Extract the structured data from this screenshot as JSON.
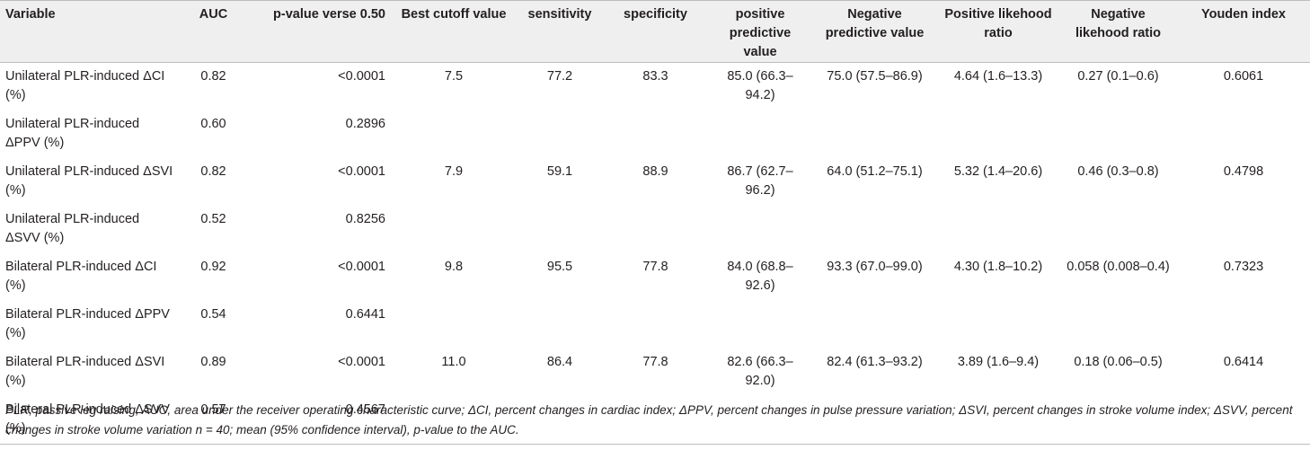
{
  "table": {
    "headers": [
      "Variable",
      "AUC",
      "p-value verse 0.50",
      "Best cutoff value",
      "sensitivity",
      "specificity",
      "positive predictive value",
      "Negative predictive value",
      "Positive likehood ratio",
      "Negative likehood ratio",
      "Youden index"
    ],
    "rows": [
      [
        "Unilateral PLR-induced ΔCI (%)",
        "0.82",
        "<0.0001",
        "7.5",
        "77.2",
        "83.3",
        "85.0 (66.3–94.2)",
        "75.0 (57.5–86.9)",
        "4.64 (1.6–13.3)",
        "0.27 (0.1–0.6)",
        "0.6061"
      ],
      [
        "Unilateral PLR-induced ΔPPV (%)",
        "0.60",
        "0.2896",
        "",
        "",
        "",
        "",
        "",
        "",
        "",
        ""
      ],
      [
        "Unilateral PLR-induced ΔSVI (%)",
        "0.82",
        "<0.0001",
        "7.9",
        "59.1",
        "88.9",
        "86.7 (62.7–96.2)",
        "64.0 (51.2–75.1)",
        "5.32 (1.4–20.6)",
        "0.46 (0.3–0.8)",
        "0.4798"
      ],
      [
        "Unilateral PLR-induced ΔSVV (%)",
        "0.52",
        "0.8256",
        "",
        "",
        "",
        "",
        "",
        "",
        "",
        ""
      ],
      [
        "Bilateral PLR-induced ΔCI (%)",
        "0.92",
        "<0.0001",
        "9.8",
        "95.5",
        "77.8",
        "84.0 (68.8–92.6)",
        "93.3 (67.0–99.0)",
        "4.30 (1.8–10.2)",
        "0.058 (0.008–0.4)",
        "0.7323"
      ],
      [
        "Bilateral PLR-induced ΔPPV (%)",
        "0.54",
        "0.6441",
        "",
        "",
        "",
        "",
        "",
        "",
        "",
        ""
      ],
      [
        "Bilateral PLR-induced ΔSVI (%)",
        "0.89",
        "<0.0001",
        "11.0",
        "86.4",
        "77.8",
        "82.6 (66.3–92.0)",
        "82.4 (61.3–93.2)",
        "3.89 (1.6–9.4)",
        "0.18 (0.06–0.5)",
        "0.6414"
      ],
      [
        "Bilateral PLR-induced ΔSVV (%)",
        "0.57",
        "0.4567",
        "",
        "",
        "",
        "",
        "",
        "",
        "",
        ""
      ]
    ]
  },
  "footnote": "PLR, passive leg raising; AUC, area under the receiver operating characteristic curve; ΔCI, percent changes in cardiac index; ΔPPV, percent changes in pulse pressure variation; ΔSVI, percent changes in stroke volume index; ΔSVV, percent changes in stroke volume variation n = 40; mean (95% confidence interval), p-value to the AUC."
}
